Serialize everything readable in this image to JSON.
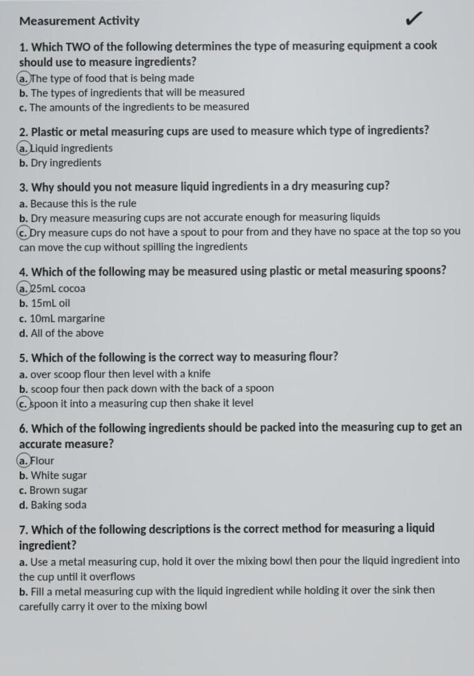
{
  "doc": {
    "title": "Measurement Activity",
    "checkmark_glyph": "✓",
    "background_color": "#c8cdd0",
    "text_color": "#1a1a1a",
    "questions": [
      {
        "num": "1.",
        "stem": "Which TWO of the following determines the type of measuring equipment a cook should use to measure ingredients?",
        "options": [
          {
            "letter": "a.",
            "text": "The type of food that is being made",
            "circled": true
          },
          {
            "letter": "b.",
            "text": "The types of ingredients that will be measured",
            "circled": false
          },
          {
            "letter": "c.",
            "text": "The amounts of the ingredients to be measured",
            "circled": false
          }
        ]
      },
      {
        "num": "2.",
        "stem": "Plastic or metal measuring cups are used to measure which type of ingredients?",
        "options": [
          {
            "letter": "a.",
            "text": "Liquid ingredients",
            "circled": true
          },
          {
            "letter": "b.",
            "text": "Dry ingredients",
            "circled": false
          }
        ]
      },
      {
        "num": "3.",
        "stem": "Why should you not measure liquid ingredients in a dry measuring cup?",
        "options": [
          {
            "letter": "a.",
            "text": "Because this is the rule",
            "circled": false
          },
          {
            "letter": "b.",
            "text": "Dry measure measuring cups are not accurate enough for measuring liquids",
            "circled": false
          },
          {
            "letter": "c.",
            "text": "Dry measure cups do not have a spout to pour from and they have no space at the top so you can move the cup without spilling the ingredients",
            "circled": true
          }
        ]
      },
      {
        "num": "4.",
        "stem": "Which of the following may be measured using plastic or metal measuring spoons?",
        "options": [
          {
            "letter": "a.",
            "text": "25mL cocoa",
            "circled": true
          },
          {
            "letter": "b.",
            "text": "15mL oil",
            "circled": false
          },
          {
            "letter": "c.",
            "text": "10mL margarine",
            "circled": false
          },
          {
            "letter": "d.",
            "text": "All of the above",
            "circled": false
          }
        ]
      },
      {
        "num": "5.",
        "stem": "Which of the following is the correct way to measuring flour?",
        "options": [
          {
            "letter": "a.",
            "text": "over scoop flour then level with a knife",
            "circled": false
          },
          {
            "letter": "b.",
            "text": "scoop four then pack down with the back of a spoon",
            "circled": false
          },
          {
            "letter": "c.",
            "text": "spoon it into a measuring cup then shake it level",
            "circled": true
          }
        ]
      },
      {
        "num": "6.",
        "stem": "Which of the following ingredients should be packed into the measuring cup to get an accurate measure?",
        "options": [
          {
            "letter": "a.",
            "text": "Flour",
            "circled": true
          },
          {
            "letter": "b.",
            "text": "White sugar",
            "circled": false
          },
          {
            "letter": "c.",
            "text": "Brown sugar",
            "circled": false
          },
          {
            "letter": "d.",
            "text": "Baking soda",
            "circled": false
          }
        ]
      },
      {
        "num": "7.",
        "stem": "Which of the following descriptions is the correct method for measuring a liquid ingredient?",
        "options": [
          {
            "letter": "a.",
            "text": "Use a metal measuring cup, hold it over the mixing bowl then pour the liquid ingredient into the cup until it overflows",
            "circled": false
          },
          {
            "letter": "b.",
            "text": "Fill a metal measuring cup with the liquid ingredient while holding it over the sink then carefully carry it over to the mixing bowl",
            "circled": false
          }
        ]
      }
    ]
  }
}
